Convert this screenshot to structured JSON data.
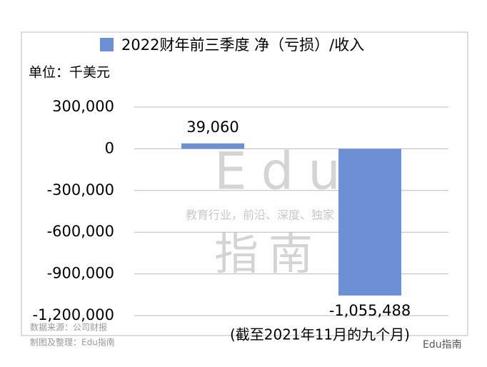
{
  "chart_data": {
    "type": "bar",
    "categories": [
      null,
      null
    ],
    "series": [
      {
        "name": "2022财年前三季度 净（亏损）/收入",
        "color": "#6d8fd4",
        "values": [
          39060,
          -1055488
        ],
        "value_labels": [
          "39,060",
          "-1,055,488"
        ]
      }
    ],
    "ylim": [
      -1200000,
      300000
    ],
    "yticks": [
      {
        "value": 300000,
        "label": "300,000"
      },
      0,
      {
        "value": -300000,
        "label": "-300,000"
      },
      {
        "value": -600000,
        "label": "-600,000"
      },
      {
        "value": -900000,
        "label": "-900,000"
      },
      {
        "value": -1200000,
        "label": "-1,200,000"
      }
    ],
    "grid": true,
    "unit": "单位：千美元",
    "note": "(截至2021年11月的九个月)",
    "source": "数据来源：公司财报",
    "credit": "制图及整理：Edu指南",
    "watermark": [
      "Edu",
      "教育行业，前沿、深度、独家",
      "指南"
    ],
    "brand": "Edu指南"
  }
}
